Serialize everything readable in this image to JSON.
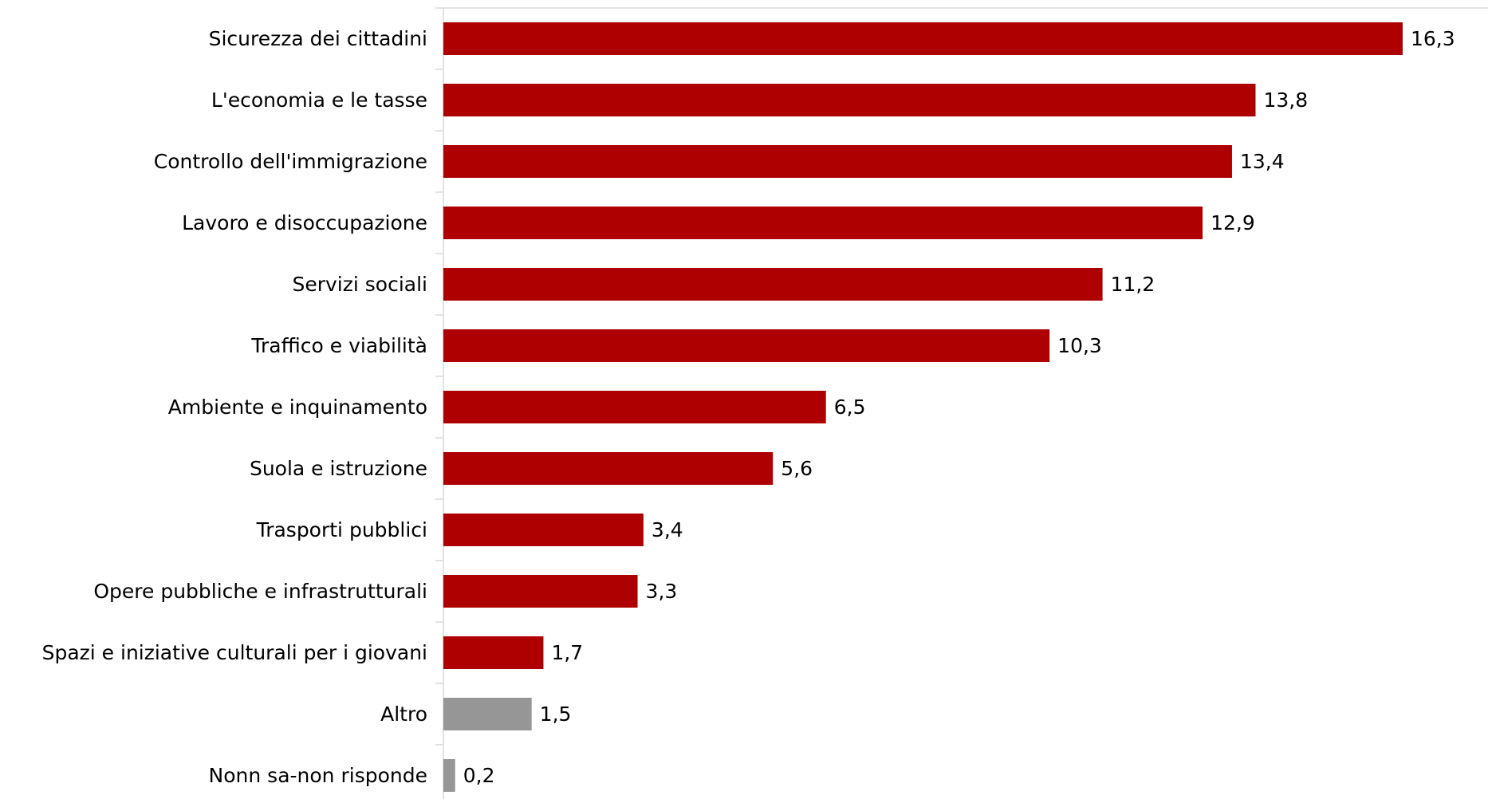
{
  "chart_data": {
    "type": "bar",
    "orientation": "horizontal",
    "title": "",
    "xlabel": "",
    "ylabel": "",
    "categories": [
      "Sicurezza dei cittadini",
      "L'economia e le tasse",
      "Controllo dell'immigrazione",
      "Lavoro e disoccupazione",
      "Servizi sociali",
      "Traffico e viabilità",
      "Ambiente e inquinamento",
      "Suola e istruzione",
      "Trasporti pubblici",
      "Opere pubbliche e infrastrutturali",
      "Spazi e iniziative culturali per i giovani",
      "Altro",
      "Nonn sa-non risponde"
    ],
    "values": [
      16.3,
      13.8,
      13.4,
      12.9,
      11.2,
      10.3,
      6.5,
      5.6,
      3.4,
      3.3,
      1.7,
      1.5,
      0.2
    ],
    "value_labels": [
      "16,3",
      "13,8",
      "13,4",
      "12,9",
      "11,2",
      "10,3",
      "6,5",
      "5,6",
      "3,4",
      "3,3",
      "1,7",
      "1,5",
      "0,2"
    ],
    "bar_colors": [
      "#ae0000",
      "#ae0000",
      "#ae0000",
      "#ae0000",
      "#ae0000",
      "#ae0000",
      "#ae0000",
      "#ae0000",
      "#ae0000",
      "#ae0000",
      "#ae0000",
      "#969696",
      "#969696"
    ],
    "xlim": [
      0,
      16.3
    ],
    "grid": false,
    "legend": "none"
  }
}
